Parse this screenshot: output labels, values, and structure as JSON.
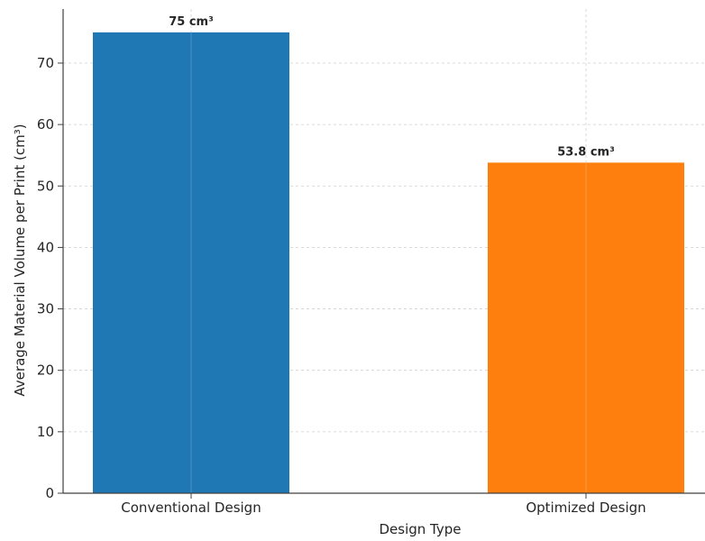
{
  "chart_data": {
    "type": "bar",
    "title": "",
    "xlabel": "Design Type",
    "ylabel": "Average Material Volume per Print (cm³)",
    "categories": [
      "Conventional Design",
      "Optimized Design"
    ],
    "values": [
      75,
      53.8
    ],
    "data_labels": [
      "75 cm³",
      "53.8 cm³"
    ],
    "colors": [
      "#1f77b4",
      "#ff7f0e"
    ],
    "ylim": [
      0,
      78.8
    ],
    "yticks": [
      0,
      10,
      20,
      30,
      40,
      50,
      60,
      70
    ],
    "grid": true
  }
}
